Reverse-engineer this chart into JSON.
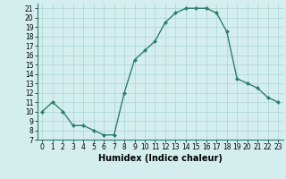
{
  "x": [
    0,
    1,
    2,
    3,
    4,
    5,
    6,
    7,
    8,
    9,
    10,
    11,
    12,
    13,
    14,
    15,
    16,
    17,
    18,
    19,
    20,
    21,
    22,
    23
  ],
  "y": [
    10,
    11,
    10,
    8.5,
    8.5,
    8,
    7.5,
    7.5,
    12,
    15.5,
    16.5,
    17.5,
    19.5,
    20.5,
    21,
    21,
    21,
    20.5,
    18.5,
    13.5,
    13,
    12.5,
    11.5,
    11
  ],
  "xlabel": "Humidex (Indice chaleur)",
  "xlim": [
    -0.5,
    23.5
  ],
  "ylim": [
    7,
    21.5
  ],
  "yticks": [
    7,
    8,
    9,
    10,
    11,
    12,
    13,
    14,
    15,
    16,
    17,
    18,
    19,
    20,
    21
  ],
  "xticks": [
    0,
    1,
    2,
    3,
    4,
    5,
    6,
    7,
    8,
    9,
    10,
    11,
    12,
    13,
    14,
    15,
    16,
    17,
    18,
    19,
    20,
    21,
    22,
    23
  ],
  "line_color": "#2d7d6e",
  "marker_color": "#2d7d6e",
  "bg_color": "#d4eeee",
  "grid_color": "#b0d8d8",
  "tick_fontsize": 5.5,
  "xlabel_fontsize": 7
}
